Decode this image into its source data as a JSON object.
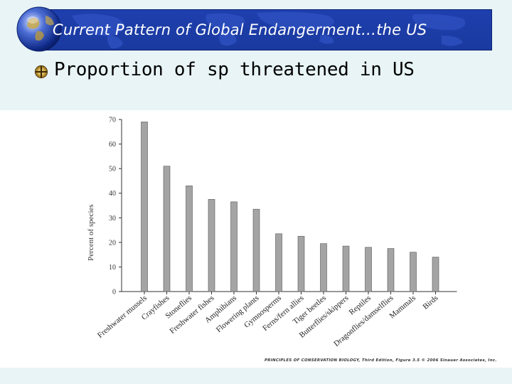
{
  "slide": {
    "title": "Current Pattern of Global Endangerment…the US",
    "bullet": "Proportion of sp threatened in US",
    "footer": "PRINCIPLES OF CONSERVATION BIOLOGY, Third Edition, Figure 3.5 © 2006 Sinauer Associates, Inc.",
    "colors": {
      "banner": "#1e3fae",
      "background": "#e8f4f6",
      "bar": "#a4a4a4",
      "bullet": "#8a6a20"
    },
    "icons": {
      "logo": "globe-icon",
      "bullet": "compass-bullet-icon"
    }
  },
  "chart_data": {
    "type": "bar",
    "title": "",
    "xlabel": "",
    "ylabel": "Percent of species",
    "ylim": [
      0,
      70
    ],
    "yticks": [
      0,
      10,
      20,
      30,
      40,
      50,
      60,
      70
    ],
    "categories": [
      "Freshwater mussels",
      "Crayfishes",
      "Stoneflies",
      "Freshwater fishes",
      "Amphibians",
      "Flowering plants",
      "Gymnosperms",
      "Ferns/fern allies",
      "Tiger beetles",
      "Butterflies/skippers",
      "Reptiles",
      "Dragonflies/damselflies",
      "Mammals",
      "Birds"
    ],
    "values": [
      69,
      51,
      43,
      37.5,
      36.5,
      33.5,
      23.5,
      22.5,
      19.5,
      18.5,
      18,
      17.5,
      16,
      14
    ],
    "grid": false,
    "legend": "none"
  }
}
